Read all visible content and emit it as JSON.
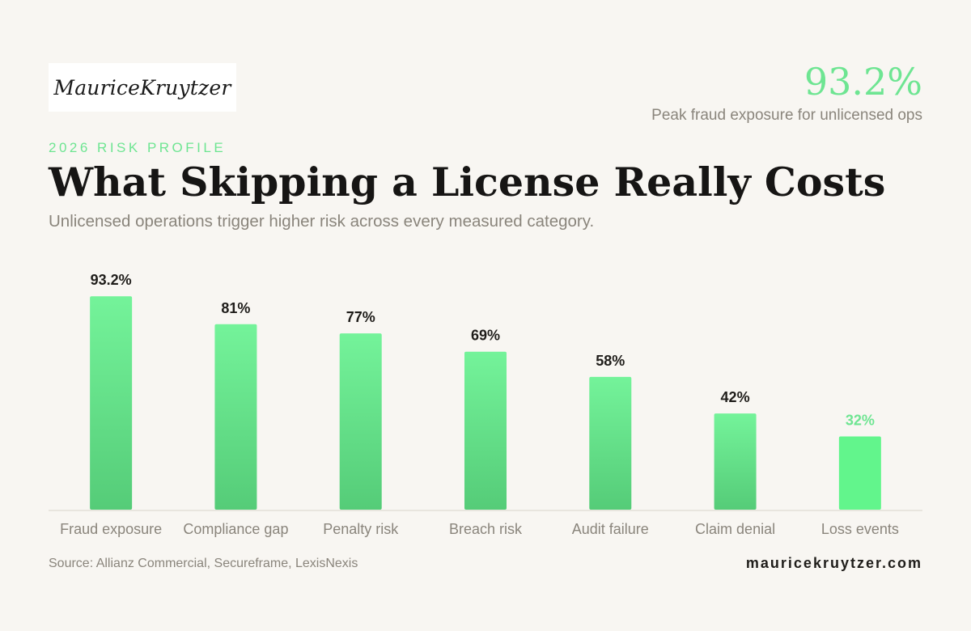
{
  "brand": {
    "logo_text": "MauriceKruytzer"
  },
  "kpi": {
    "value": "93.2%",
    "label": "Peak fraud exposure for unlicensed ops"
  },
  "header": {
    "eyebrow": "2026 RISK PROFILE",
    "title": "What Skipping a License Really Costs",
    "subtitle": "Unlicensed operations trigger higher risk across every measured category."
  },
  "footer": {
    "source": "Source: Allianz Commercial, Secureframe, LexisNexis",
    "site": "mauricekruytzer.com"
  },
  "colors": {
    "accent": "#6ee592",
    "bar_top": "#74f39a",
    "bar_bottom": "#55cc78",
    "highlight_bar": "#62f58c",
    "muted_text": "#8a857c",
    "dark_text": "#1f1d1a",
    "background": "#f8f6f2"
  },
  "chart_data": {
    "type": "bar",
    "categories": [
      "Fraud exposure",
      "Compliance gap",
      "Penalty risk",
      "Breach risk",
      "Audit failure",
      "Claim denial",
      "Loss events"
    ],
    "values": [
      93.2,
      81,
      77,
      69,
      58,
      42,
      32
    ],
    "value_labels": [
      "93.2%",
      "81%",
      "77%",
      "69%",
      "58%",
      "42%",
      "32%"
    ],
    "ylim": [
      0,
      100
    ],
    "grid": false,
    "highlighted_category": "Loss events"
  }
}
